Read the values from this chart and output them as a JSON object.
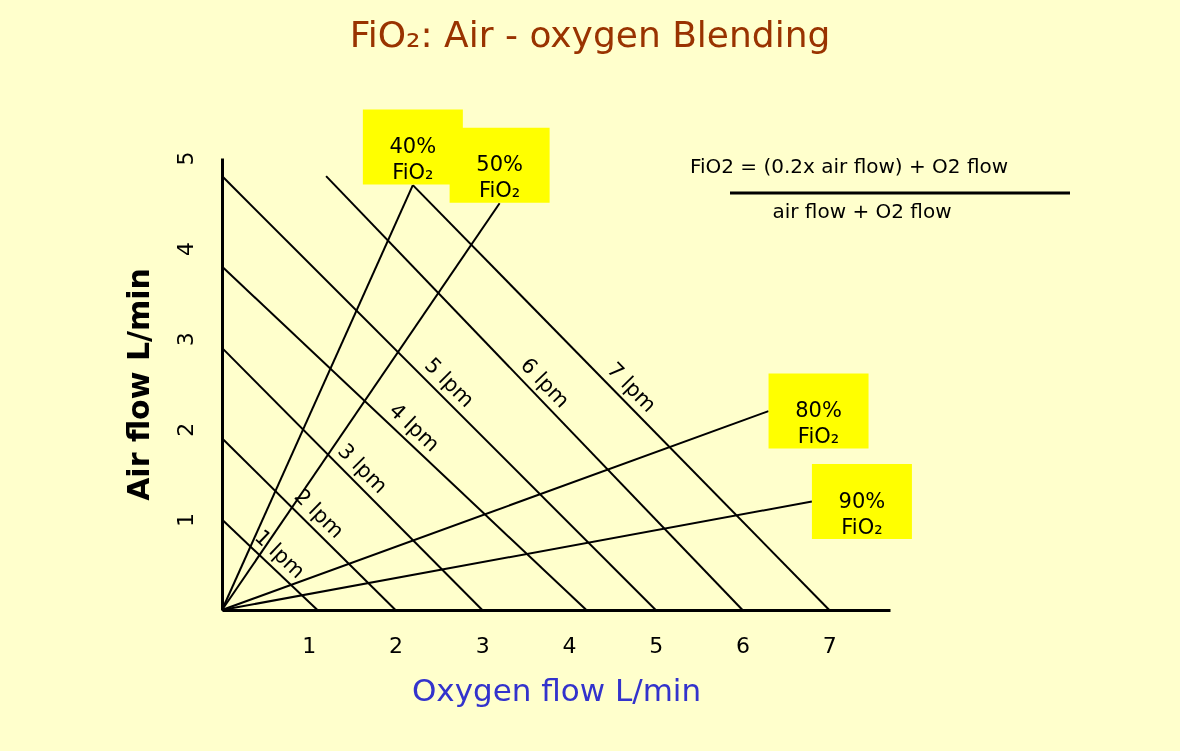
{
  "chart_data": {
    "type": "line",
    "title": "FiO₂: Air - oxygen Blending",
    "xlabel": "Oxygen flow L/min",
    "ylabel": "Air  flow L/min",
    "xlim": [
      0,
      7.7
    ],
    "ylim": [
      0,
      5
    ],
    "xticks": [
      1,
      2,
      3,
      4,
      5,
      6,
      7
    ],
    "yticks": [
      1,
      2,
      3,
      4,
      5
    ],
    "grid": false,
    "marker": "none",
    "line_style": "solid",
    "annotations": [
      "FiO2 = (0.2x air flow) + O2 flow",
      "air flow + O2 flow"
    ],
    "series": [
      {
        "name": "1 lpm",
        "color": "#000000",
        "x": [
          0,
          1.1
        ],
        "values": [
          1,
          0
        ]
      },
      {
        "name": "2 lpm",
        "color": "#000000",
        "x": [
          0,
          2
        ],
        "values": [
          1.9,
          0
        ]
      },
      {
        "name": "3 lpm",
        "color": "#000000",
        "x": [
          0,
          3
        ],
        "values": [
          2.9,
          0
        ]
      },
      {
        "name": "4 lpm",
        "color": "#000000",
        "x": [
          0,
          4.2
        ],
        "values": [
          3.8,
          0
        ]
      },
      {
        "name": "5 lpm",
        "color": "#000000",
        "x": [
          0,
          5
        ],
        "values": [
          4.8,
          0
        ]
      },
      {
        "name": "6 lpm",
        "color": "#000000",
        "x": [
          1.2,
          6
        ],
        "values": [
          4.8,
          0
        ]
      },
      {
        "name": "7 lpm",
        "color": "#000000",
        "x": [
          2.2,
          7
        ],
        "values": [
          4.7,
          0
        ]
      },
      {
        "name": "40% FiO₂",
        "color": "#000000",
        "x": [
          0,
          2.2
        ],
        "values": [
          0,
          4.7
        ]
      },
      {
        "name": "50% FiO₂",
        "color": "#000000",
        "x": [
          0,
          3.2
        ],
        "values": [
          0,
          4.5
        ]
      },
      {
        "name": "80% FiO₂",
        "color": "#000000",
        "x": [
          0,
          6.3
        ],
        "values": [
          0,
          2.2
        ]
      },
      {
        "name": "90% FiO₂",
        "color": "#000000",
        "x": [
          0,
          6.8
        ],
        "values": [
          0,
          1.2
        ]
      }
    ]
  }
}
